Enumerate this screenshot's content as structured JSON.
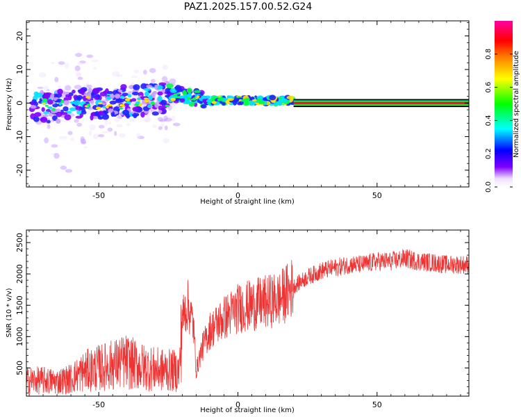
{
  "title": "PAZ1.2025.157.00.52.G24",
  "chart_data": [
    {
      "type": "heatmap",
      "xlabel": "Height of straight line (km)",
      "ylabel": "Frequency (Hz)",
      "xlim": [
        -76,
        83
      ],
      "ylim": [
        -25,
        24.5
      ],
      "x_ticks": [
        -50,
        0,
        50
      ],
      "y_ticks": [
        -20,
        -10,
        0,
        10,
        20
      ],
      "colorbar": {
        "label": "Normalized spectral amplitude",
        "range": [
          0,
          1
        ],
        "ticks": [
          0.0,
          0.2,
          0.4,
          0.6,
          0.8
        ],
        "tick_labels": [
          "0.0",
          "0.2",
          "0.4",
          "0.6",
          "0.8"
        ],
        "colors": [
          "#ffffff",
          "#8000ff",
          "#0000ff",
          "#00ffff",
          "#00ff00",
          "#ffff00",
          "#ff7f00",
          "#ff0000",
          "#ff00a0"
        ]
      },
      "features": [
        {
          "x_range": [
            20,
            83
          ],
          "freq": 0,
          "amplitude": 1.0,
          "description_text": ""
        }
      ],
      "grid": false
    },
    {
      "type": "line",
      "xlabel": "Height of straight line (km)",
      "ylabel": "SNR (10 * v/v)",
      "xlim": [
        -76,
        83
      ],
      "ylim": [
        50,
        2700
      ],
      "x_ticks": [
        -50,
        0,
        50
      ],
      "y_ticks": [
        500,
        1000,
        1500,
        2000,
        2500
      ],
      "series": [
        {
          "color": "#ee3333",
          "x": [
            -76,
            -70,
            -65,
            -60,
            -55,
            -50,
            -45,
            -40,
            -35,
            -30,
            -25,
            -21,
            -20,
            -18,
            -16,
            -15,
            -13,
            -10,
            -5,
            0,
            5,
            10,
            15,
            20,
            25,
            30,
            35,
            40,
            45,
            50,
            55,
            60,
            65,
            70,
            75,
            80,
            83
          ],
          "y": [
            300,
            300,
            280,
            330,
            450,
            500,
            550,
            600,
            520,
            480,
            460,
            450,
            1300,
            1500,
            1200,
            450,
            800,
            1100,
            1300,
            1450,
            1500,
            1550,
            1600,
            1800,
            1950,
            2050,
            2100,
            2150,
            2150,
            2200,
            2200,
            2250,
            2200,
            2180,
            2150,
            2150,
            2150
          ]
        }
      ],
      "grid": false
    }
  ]
}
